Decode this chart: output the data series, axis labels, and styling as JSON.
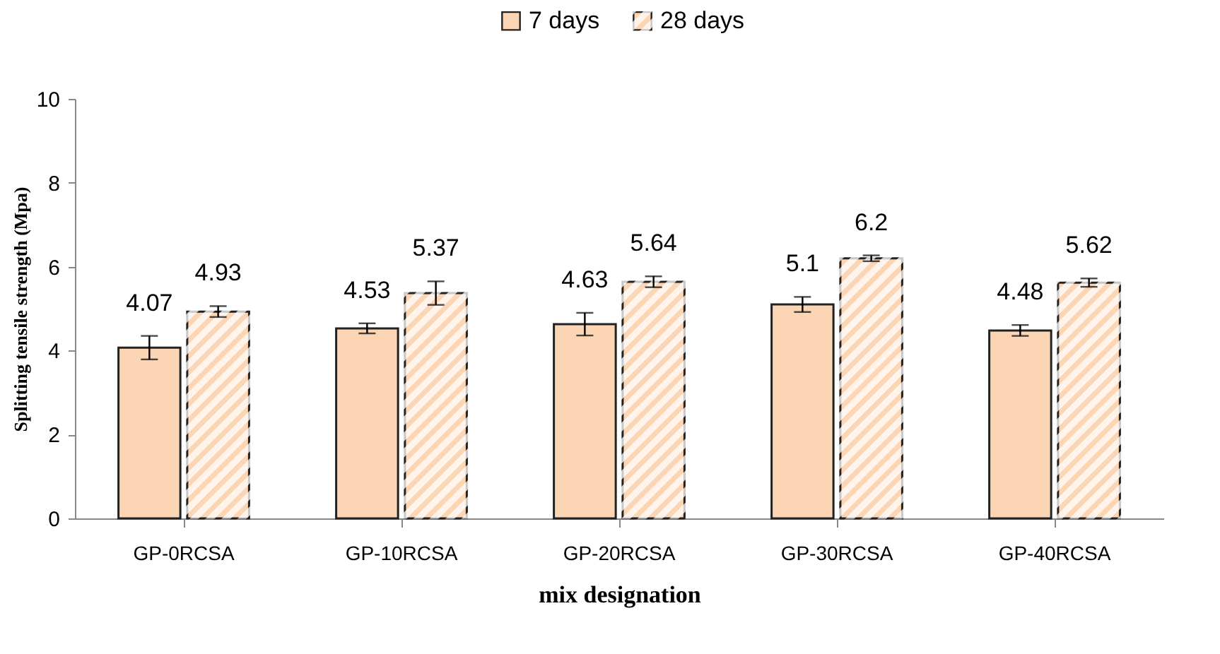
{
  "chart_data": {
    "type": "bar",
    "xlabel": "mix designation",
    "ylabel": "Splitting tensile strength (Mpa)",
    "categories": [
      "GP-0RCSA",
      "GP-10RCSA",
      "GP-20RCSA",
      "GP-30RCSA",
      "GP-40RCSA"
    ],
    "series": [
      {
        "name": "7 days",
        "color": "#fcd5b4",
        "values": [
          4.07,
          4.53,
          4.63,
          5.1,
          4.48
        ],
        "errors": [
          0.28,
          0.12,
          0.27,
          0.18,
          0.13
        ]
      },
      {
        "name": "28 days",
        "color": "#fcd5b4",
        "values": [
          4.93,
          5.37,
          5.64,
          6.2,
          5.62
        ],
        "errors": [
          0.13,
          0.28,
          0.13,
          0.07,
          0.1
        ]
      }
    ],
    "ylim": [
      0,
      10
    ],
    "yticks": [
      0,
      2,
      4,
      6,
      8,
      10
    ],
    "data_labels": true,
    "legend": "top",
    "grid": false
  }
}
